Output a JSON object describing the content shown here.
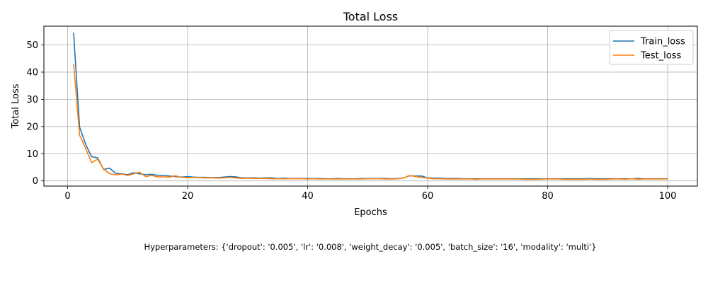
{
  "chart_data": {
    "type": "line",
    "title": "Total Loss",
    "xlabel": "Epochs",
    "ylabel": "Total Loss",
    "xlim": [
      -3.95,
      104.95
    ],
    "ylim": [
      -1.9,
      56.9
    ],
    "xticks": [
      0,
      20,
      40,
      60,
      80,
      100
    ],
    "yticks": [
      0,
      10,
      20,
      30,
      40,
      50
    ],
    "grid": true,
    "legend": "top-right",
    "x": [
      1,
      2,
      3,
      4,
      5,
      6,
      7,
      8,
      9,
      10,
      11,
      12,
      13,
      14,
      15,
      16,
      17,
      18,
      19,
      20,
      21,
      22,
      23,
      24,
      25,
      26,
      27,
      28,
      29,
      30,
      31,
      32,
      33,
      34,
      35,
      36,
      37,
      38,
      39,
      40,
      41,
      42,
      43,
      44,
      45,
      46,
      47,
      48,
      49,
      50,
      51,
      52,
      53,
      54,
      55,
      56,
      57,
      58,
      59,
      60,
      61,
      62,
      63,
      64,
      65,
      66,
      67,
      68,
      69,
      70,
      71,
      72,
      73,
      74,
      75,
      76,
      77,
      78,
      79,
      80,
      81,
      82,
      83,
      84,
      85,
      86,
      87,
      88,
      89,
      90,
      91,
      92,
      93,
      94,
      95,
      96,
      97,
      98,
      99,
      100
    ],
    "series": [
      {
        "name": "Train_loss",
        "color": "#1f77b4",
        "values": [
          54.5,
          19.8,
          13.5,
          8.9,
          8.5,
          4.2,
          4.7,
          2.8,
          2.6,
          2.3,
          3.0,
          2.6,
          2.3,
          2.4,
          2.1,
          2.0,
          1.8,
          1.6,
          1.4,
          1.6,
          1.4,
          1.3,
          1.3,
          1.2,
          1.2,
          1.4,
          1.6,
          1.5,
          1.1,
          1.1,
          1.1,
          1.0,
          1.1,
          1.1,
          0.9,
          1.0,
          0.9,
          0.9,
          0.9,
          0.9,
          0.9,
          0.9,
          0.8,
          0.8,
          0.9,
          0.8,
          0.8,
          0.8,
          0.9,
          0.9,
          0.9,
          0.9,
          0.9,
          0.8,
          0.9,
          1.1,
          1.9,
          1.8,
          1.8,
          1.1,
          1.0,
          1.0,
          0.9,
          0.9,
          0.9,
          0.8,
          0.8,
          0.8,
          0.8,
          0.8,
          0.8,
          0.8,
          0.8,
          0.8,
          0.8,
          0.8,
          0.8,
          0.8,
          0.8,
          0.8,
          0.8,
          0.8,
          0.8,
          0.8,
          0.8,
          0.8,
          0.9,
          0.8,
          0.8,
          0.8,
          0.8,
          0.8,
          0.8,
          0.8,
          0.9,
          0.8,
          0.8,
          0.8,
          0.8,
          0.8
        ]
      },
      {
        "name": "Test_loss",
        "color": "#ff7f0e",
        "values": [
          43.0,
          16.8,
          12.0,
          6.7,
          8.0,
          4.3,
          2.7,
          2.2,
          2.5,
          2.0,
          2.6,
          3.2,
          1.6,
          2.0,
          1.5,
          1.5,
          1.4,
          1.9,
          1.3,
          1.2,
          1.3,
          1.2,
          1.1,
          1.1,
          1.0,
          1.1,
          1.3,
          1.1,
          0.9,
          1.0,
          0.9,
          0.9,
          0.9,
          0.8,
          0.8,
          0.8,
          0.8,
          0.8,
          0.8,
          0.7,
          0.8,
          0.7,
          0.7,
          0.7,
          0.7,
          0.7,
          0.7,
          0.7,
          0.7,
          0.8,
          0.8,
          0.8,
          0.7,
          0.7,
          0.8,
          1.1,
          2.0,
          1.6,
          1.3,
          1.0,
          0.8,
          0.8,
          0.7,
          0.7,
          0.7,
          0.7,
          0.7,
          0.6,
          0.7,
          0.7,
          0.7,
          0.7,
          0.7,
          0.7,
          0.7,
          0.6,
          0.6,
          0.6,
          0.7,
          0.7,
          0.7,
          0.7,
          0.6,
          0.6,
          0.6,
          0.6,
          0.7,
          0.6,
          0.6,
          0.6,
          0.7,
          0.7,
          0.6,
          0.8,
          0.6,
          0.7,
          0.7,
          0.7,
          0.7,
          0.7
        ]
      }
    ]
  },
  "caption": "Hyperparameters: {'dropout': '0.005', 'lr': '0.008', 'weight_decay': '0.005', 'batch_size': '16', 'modality': 'multi'}"
}
